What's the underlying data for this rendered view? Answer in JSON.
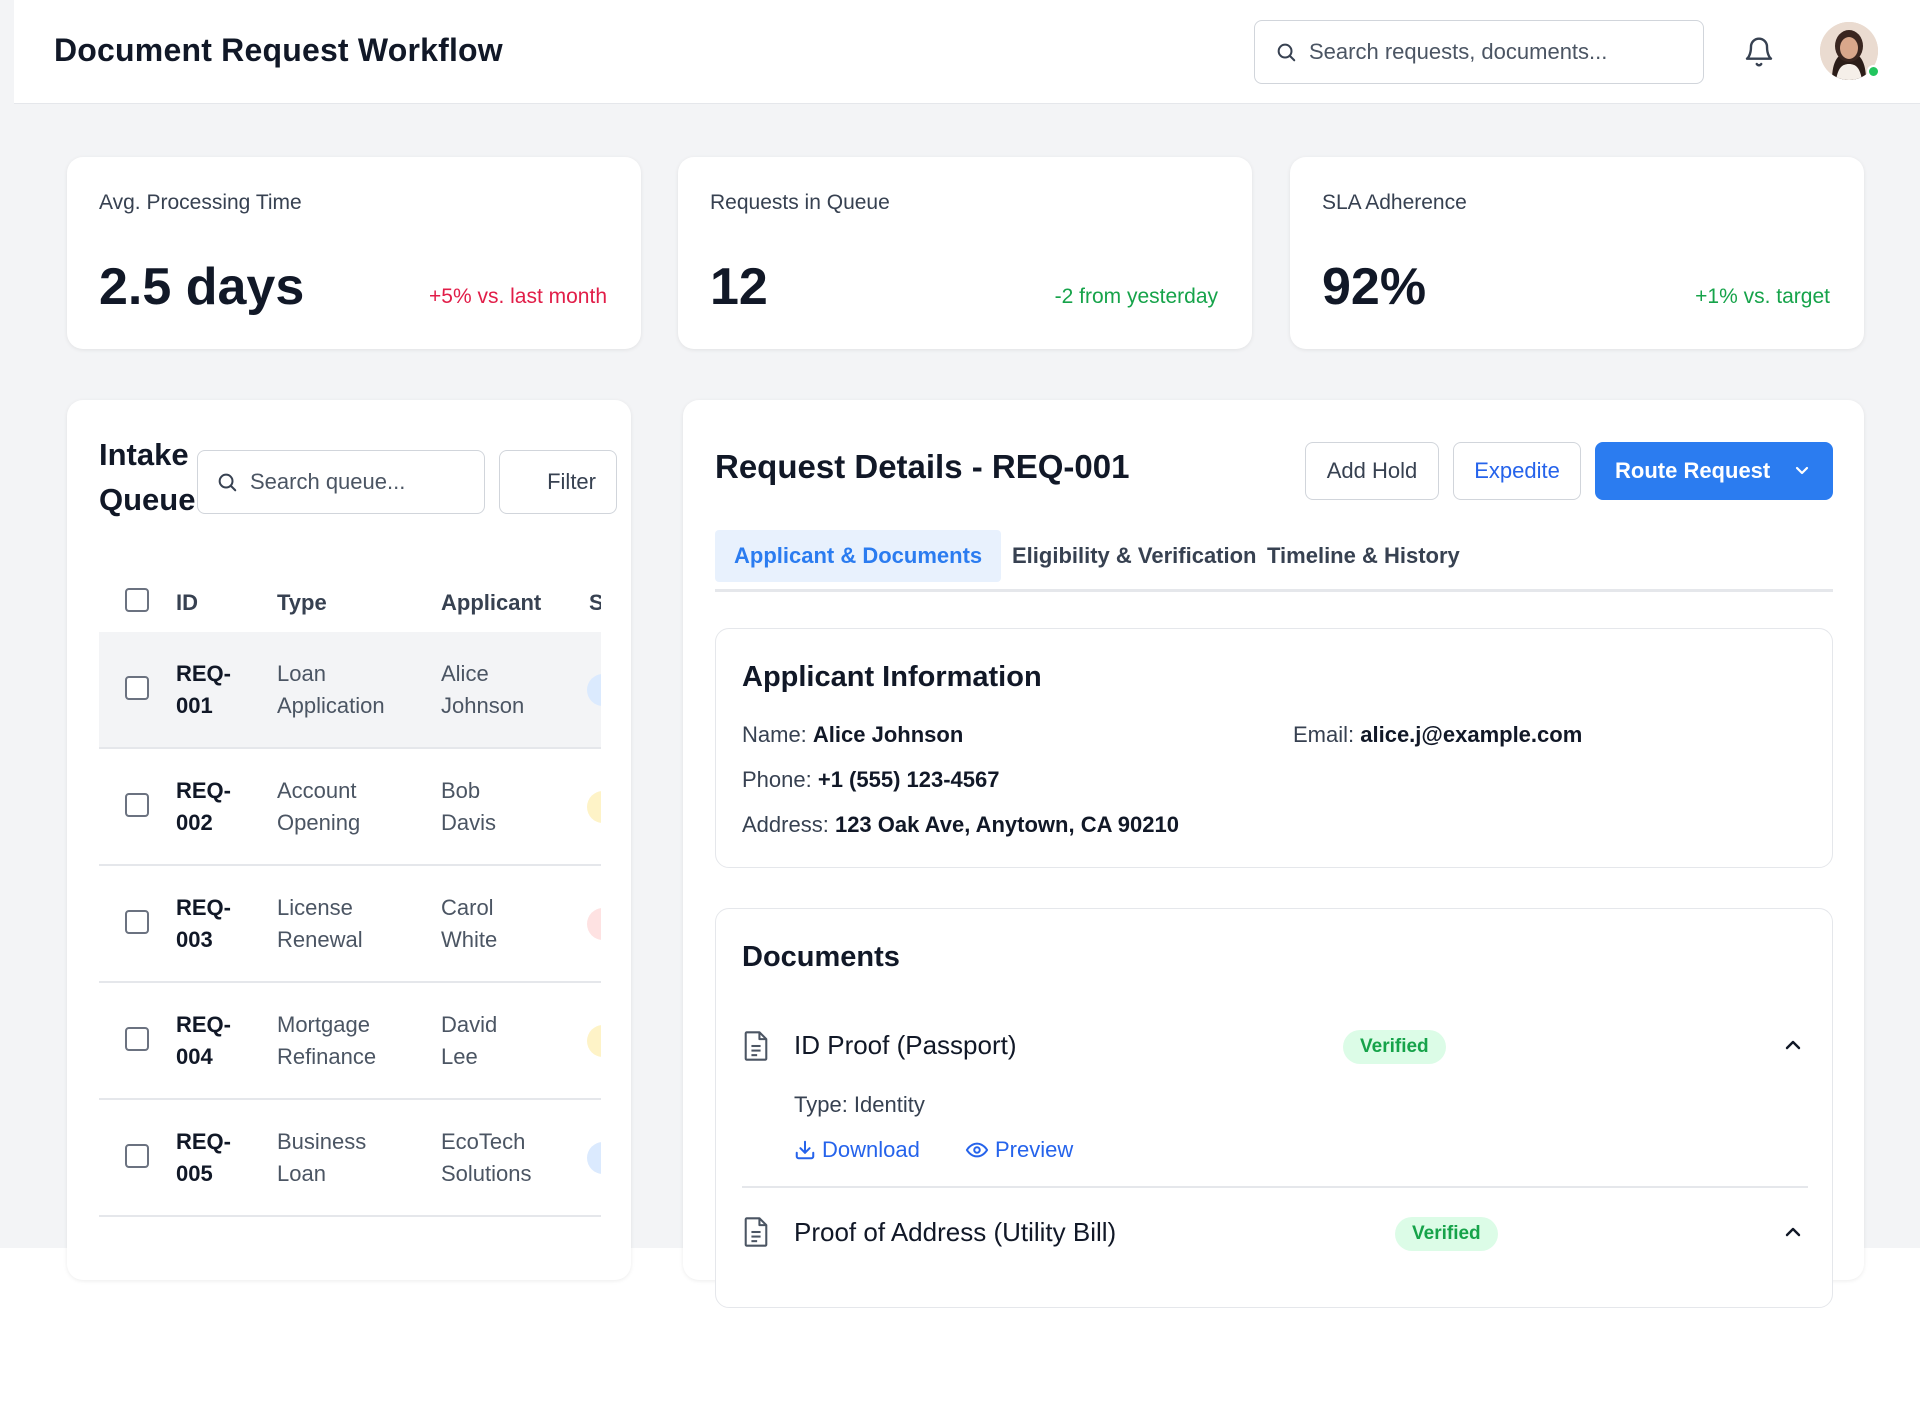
{
  "app": {
    "title": "Document Request Workflow"
  },
  "header": {
    "search_placeholder": "Search requests, documents..."
  },
  "colors": {
    "accent": "#2b7cf0",
    "positive": "#16a34a",
    "negative": "#e11d48",
    "verified_bg": "#dcfce7"
  },
  "kpis": [
    {
      "label": "Avg. Processing Time",
      "value": "2.5 days",
      "delta": "+5% vs. last month",
      "trend": "negative"
    },
    {
      "label": "Requests in Queue",
      "value": "12",
      "delta": "-2 from yesterday",
      "trend": "positive"
    },
    {
      "label": "SLA Adherence",
      "value": "92%",
      "delta": "+1% vs. target",
      "trend": "positive"
    }
  ],
  "queue": {
    "title_line1": "Intake",
    "title_line2": "Queue",
    "search_placeholder": "Search queue...",
    "filter_label": "Filter",
    "columns": [
      "ID",
      "Type",
      "Applicant",
      "S"
    ],
    "rows": [
      {
        "id1": "REQ-",
        "id2": "001",
        "type1": "Loan",
        "type2": "Application",
        "app1": "Alice",
        "app2": "Johnson",
        "status_color": "#dbeafe"
      },
      {
        "id1": "REQ-",
        "id2": "002",
        "type1": "Account",
        "type2": "Opening",
        "app1": "Bob",
        "app2": "Davis",
        "status_color": "#fef3c7"
      },
      {
        "id1": "REQ-",
        "id2": "003",
        "type1": "License",
        "type2": "Renewal",
        "app1": "Carol",
        "app2": "White",
        "status_color": "#fee2e2"
      },
      {
        "id1": "REQ-",
        "id2": "004",
        "type1": "Mortgage",
        "type2": "Refinance",
        "app1": "David",
        "app2": "Lee",
        "status_color": "#fef3c7"
      },
      {
        "id1": "REQ-",
        "id2": "005",
        "type1": "Business",
        "type2": "Loan",
        "app1": "EcoTech",
        "app2": "Solutions",
        "status_color": "#dbeafe"
      }
    ]
  },
  "details": {
    "title": "Request Details - REQ-001",
    "actions": {
      "hold": "Add Hold",
      "expedite": "Expedite",
      "route": "Route Request"
    },
    "tabs": [
      "Applicant & Documents",
      "Eligibility & Verification",
      "Timeline & History"
    ],
    "applicant": {
      "title": "Applicant Information",
      "name_label": "Name:",
      "name": "Alice Johnson",
      "email_label": "Email:",
      "email": "alice.j@example.com",
      "phone_label": "Phone:",
      "phone": "+1 (555) 123-4567",
      "address_label": "Address:",
      "address": "123 Oak Ave, Anytown, CA 90210"
    },
    "documents": {
      "title": "Documents",
      "items": [
        {
          "name": "ID Proof (Passport)",
          "status": "Verified",
          "type_text": "Type: Identity",
          "download": "Download",
          "preview": "Preview"
        },
        {
          "name": "Proof of Address (Utility Bill)",
          "status": "Verified"
        }
      ]
    }
  }
}
